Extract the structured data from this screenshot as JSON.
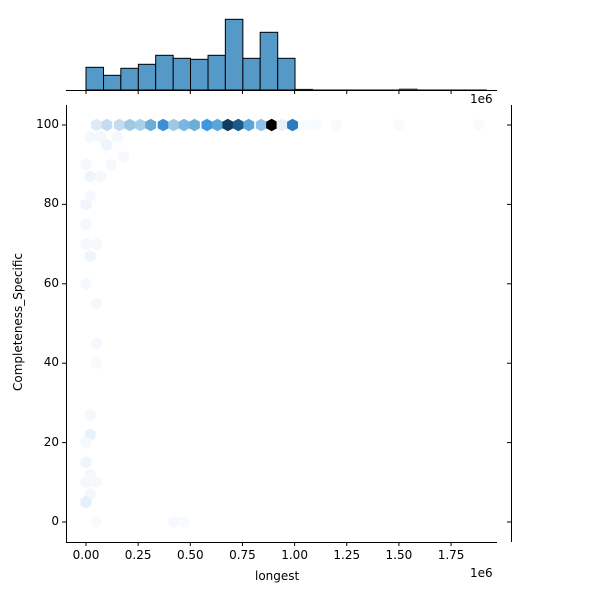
{
  "chart_data": {
    "type": "jointplot-hexbin",
    "main": {
      "type": "hexbin",
      "xlabel": "longest",
      "ylabel": "Completeness_Specific",
      "x_offset_label": "1e6",
      "x_ticks": [
        "0.00",
        "0.25",
        "0.50",
        "0.75",
        "1.00",
        "1.25",
        "1.50",
        "1.75"
      ],
      "x_tick_values": [
        0.0,
        0.25,
        0.5,
        0.75,
        1.0,
        1.25,
        1.5,
        1.75
      ],
      "y_ticks": [
        "0",
        "20",
        "40",
        "60",
        "80",
        "100"
      ],
      "y_tick_values": [
        0,
        20,
        40,
        60,
        80,
        100
      ],
      "xlim": [
        -0.09,
        1.98
      ],
      "ylim": [
        -5,
        105
      ],
      "colormap": "Blues",
      "hexes_row_y100": [
        {
          "x": 0.05,
          "y": 100,
          "color": "#deebf7"
        },
        {
          "x": 0.1,
          "y": 100,
          "color": "#c6dbef"
        },
        {
          "x": 0.16,
          "y": 100,
          "color": "#c6dbef"
        },
        {
          "x": 0.21,
          "y": 100,
          "color": "#9ecae1"
        },
        {
          "x": 0.26,
          "y": 100,
          "color": "#a8d0ea"
        },
        {
          "x": 0.31,
          "y": 100,
          "color": "#6baed6"
        },
        {
          "x": 0.37,
          "y": 100,
          "color": "#3a8fd6"
        },
        {
          "x": 0.42,
          "y": 100,
          "color": "#9ecae1"
        },
        {
          "x": 0.47,
          "y": 100,
          "color": "#7ab6e2"
        },
        {
          "x": 0.52,
          "y": 100,
          "color": "#6baed6"
        },
        {
          "x": 0.58,
          "y": 100,
          "color": "#3a98e0"
        },
        {
          "x": 0.63,
          "y": 100,
          "color": "#5aa5db"
        },
        {
          "x": 0.68,
          "y": 100,
          "color": "#0e3b5e"
        },
        {
          "x": 0.73,
          "y": 100,
          "color": "#1a5a8a"
        },
        {
          "x": 0.78,
          "y": 100,
          "color": "#5aa5db"
        },
        {
          "x": 0.84,
          "y": 100,
          "color": "#8ec0e8"
        },
        {
          "x": 0.89,
          "y": 100,
          "color": "#000000"
        },
        {
          "x": 0.94,
          "y": 100,
          "color": "#e6f0fa"
        },
        {
          "x": 0.99,
          "y": 100,
          "color": "#2b7bc0"
        },
        {
          "x": 1.05,
          "y": 100,
          "color": "#f7fbff"
        },
        {
          "x": 1.1,
          "y": 100,
          "color": "#f7fbff"
        },
        {
          "x": 1.2,
          "y": 100,
          "color": "#f7fbff"
        },
        {
          "x": 1.5,
          "y": 100,
          "color": "#f7fbff"
        },
        {
          "x": 1.88,
          "y": 100,
          "color": "#f7fbff"
        }
      ],
      "hexes_sparse": [
        {
          "x": 0.02,
          "y": 97,
          "color": "#f3f8fd"
        },
        {
          "x": 0.07,
          "y": 97,
          "color": "#f3f8fd"
        },
        {
          "x": 0.1,
          "y": 95,
          "color": "#eef5fc"
        },
        {
          "x": 0.15,
          "y": 97,
          "color": "#f3f8fd"
        },
        {
          "x": 0.0,
          "y": 90,
          "color": "#f3f8fd"
        },
        {
          "x": 0.02,
          "y": 87,
          "color": "#eef5fc"
        },
        {
          "x": 0.07,
          "y": 87,
          "color": "#f3f8fd"
        },
        {
          "x": 0.12,
          "y": 90,
          "color": "#f5f9fd"
        },
        {
          "x": 0.18,
          "y": 92,
          "color": "#f5f9fd"
        },
        {
          "x": 0.0,
          "y": 80,
          "color": "#eef5fc"
        },
        {
          "x": 0.02,
          "y": 82,
          "color": "#f5f9fd"
        },
        {
          "x": 0.0,
          "y": 75,
          "color": "#f3f8fd"
        },
        {
          "x": 0.0,
          "y": 70,
          "color": "#f3f8fd"
        },
        {
          "x": 0.02,
          "y": 67,
          "color": "#eef5fc"
        },
        {
          "x": 0.05,
          "y": 70,
          "color": "#f5f9fd"
        },
        {
          "x": 0.0,
          "y": 60,
          "color": "#f5f9fd"
        },
        {
          "x": 0.05,
          "y": 55,
          "color": "#f5f9fd"
        },
        {
          "x": 0.05,
          "y": 45,
          "color": "#f5f9fd"
        },
        {
          "x": 0.05,
          "y": 40,
          "color": "#f7fbff"
        },
        {
          "x": 0.02,
          "y": 27,
          "color": "#f3f8fd"
        },
        {
          "x": 0.02,
          "y": 22,
          "color": "#e8f2fb"
        },
        {
          "x": 0.0,
          "y": 20,
          "color": "#f5f9fd"
        },
        {
          "x": 0.0,
          "y": 15,
          "color": "#eef5fc"
        },
        {
          "x": 0.02,
          "y": 12,
          "color": "#f3f8fd"
        },
        {
          "x": 0.0,
          "y": 10,
          "color": "#f3f8fd"
        },
        {
          "x": 0.05,
          "y": 10,
          "color": "#f5f9fd"
        },
        {
          "x": 0.02,
          "y": 7,
          "color": "#f3f8fd"
        },
        {
          "x": 0.0,
          "y": 5,
          "color": "#e3eff9"
        },
        {
          "x": 0.05,
          "y": 0,
          "color": "#f7fbff"
        },
        {
          "x": 0.42,
          "y": 0,
          "color": "#f5f9fd"
        },
        {
          "x": 0.47,
          "y": 0,
          "color": "#f7fbff"
        }
      ]
    },
    "marginal_x": {
      "type": "bar",
      "bar_color": "#5499c7",
      "edge_color": "#000000",
      "bin_edges": [
        0.0,
        0.084,
        0.167,
        0.251,
        0.334,
        0.418,
        0.501,
        0.585,
        0.668,
        0.752,
        0.835,
        0.919,
        1.002,
        1.086,
        1.169,
        1.253,
        1.336,
        1.42,
        1.503,
        1.587,
        1.67,
        1.754,
        1.838,
        1.92
      ],
      "relative_heights": [
        22.7,
        14.7,
        21.7,
        25.7,
        34.7,
        31.7,
        30.7,
        34.7,
        70.7,
        31.7,
        57.7,
        31.7,
        0.8,
        0.2,
        0.2,
        0.2,
        0.2,
        0.2,
        1.0,
        0.2,
        0.2,
        0.2,
        0.2
      ],
      "x_offset_label": "1e6"
    },
    "marginal_y": {
      "type": "bar",
      "note": "no visible bars"
    }
  }
}
